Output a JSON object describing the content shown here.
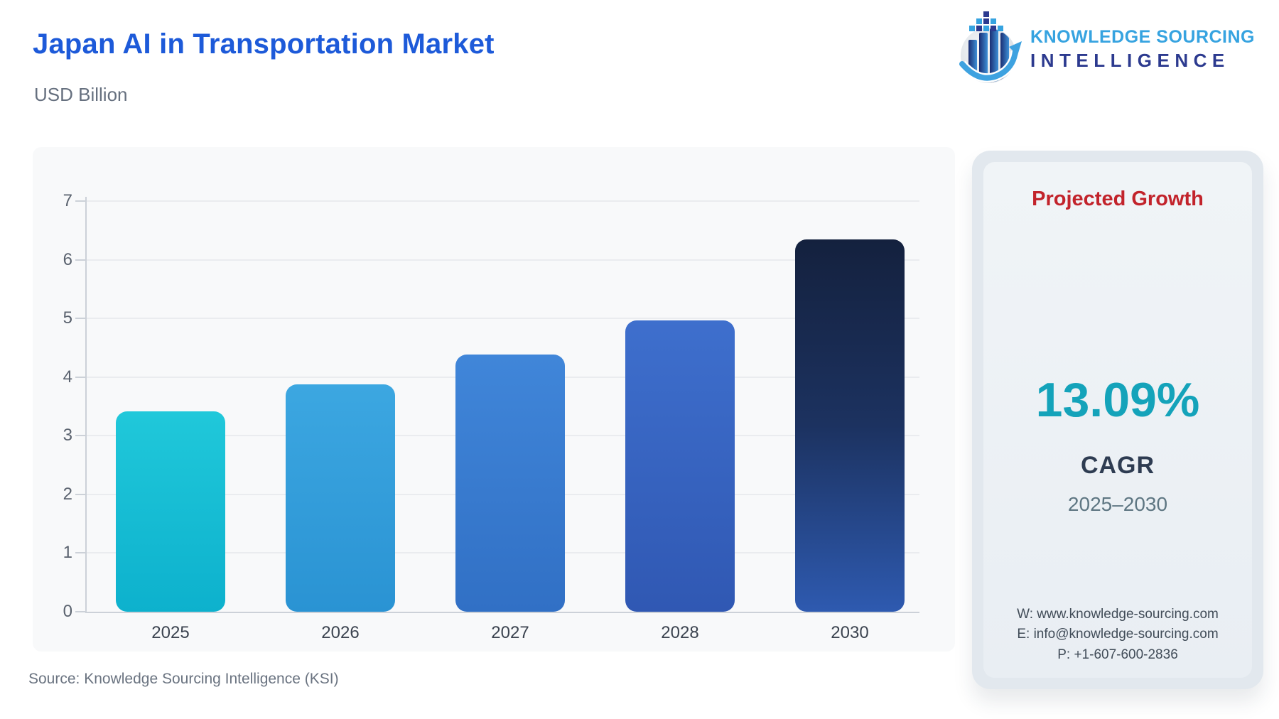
{
  "header": {
    "title": "Japan AI in Transportation Market",
    "subtitle": "USD Billion"
  },
  "logo": {
    "line1": "KNOWLEDGE SOURCING",
    "line2": "INTELLIGENCE"
  },
  "chart_data": {
    "type": "bar",
    "title": "Japan AI in Transportation Market",
    "ylabel": "USD Billion",
    "xlabel": "",
    "categories": [
      "2025",
      "2026",
      "2027",
      "2028",
      "2030"
    ],
    "values": [
      3.42,
      3.88,
      4.39,
      4.96,
      6.35
    ],
    "ylim": [
      0,
      7
    ],
    "yticks": [
      0,
      1,
      2,
      3,
      4,
      5,
      6,
      7
    ],
    "grid": true,
    "legend": false,
    "bar_gradients": [
      [
        "#20c8da",
        "#0db1cd"
      ],
      [
        "#3ca7e1",
        "#2a93d3"
      ],
      [
        "#4086d9",
        "#3170c5"
      ],
      [
        "#3e6fcd",
        "#3058b3"
      ],
      [
        "#14213e",
        "#1c3260",
        "#2e5ab0"
      ]
    ]
  },
  "side_panel": {
    "heading": "Projected Growth",
    "cagr_value": "13.09%",
    "cagr_label": "CAGR",
    "period": "2025–2030",
    "contacts": {
      "website": "W: www.knowledge-sourcing.com",
      "email": "E: info@knowledge-sourcing.com",
      "phone": "P: +1-607-600-2836"
    }
  },
  "footer": {
    "source": "Source: Knowledge Sourcing Intelligence (KSI)"
  },
  "icons": {
    "logo_icon": "ksi-globe-bars-arrow-icon"
  },
  "theme": {
    "title_blue": "#1d5ad9",
    "subtitle_gray": "#66707f",
    "logo_light_blue": "#36a3e0",
    "logo_dark_blue": "#2c3a8f",
    "card_bg": "#f8f9fa",
    "grid_color": "#eaecef",
    "axis_color": "#ccd1d8",
    "tick_color": "#5a626e",
    "xlabel_color": "#3b434f",
    "panel_outer": "#e2e8ee",
    "panel_inner_top": "#f0f4f7",
    "panel_inner_bottom": "#e9eef3",
    "heading_red": "#c2232b",
    "value_teal": "#14a3ba",
    "dark_navy": "#2e3c52",
    "period_gray": "#5e7682",
    "contact_gray": "#414c58",
    "source_gray": "#6a7380"
  }
}
